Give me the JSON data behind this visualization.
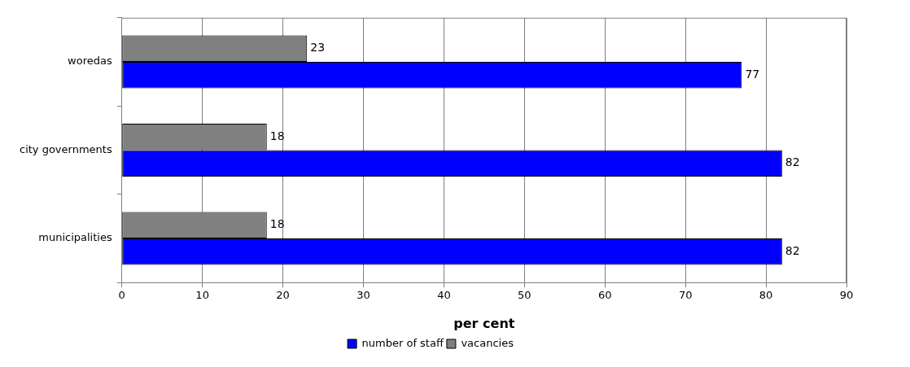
{
  "chart_data": {
    "type": "bar",
    "orientation": "horizontal",
    "categories": [
      "woredas",
      "city governments",
      "municipalities"
    ],
    "series": [
      {
        "name": "vacancies",
        "color": "#808080",
        "values": [
          23,
          18,
          18
        ]
      },
      {
        "name": "number of staff",
        "color": "#0000ff",
        "values": [
          77,
          82,
          82
        ]
      }
    ],
    "xlabel": "per cent",
    "xlim": [
      0,
      90
    ],
    "xticks": [
      0,
      10,
      20,
      30,
      40,
      50,
      60,
      70,
      80,
      90
    ],
    "grid": "x",
    "legend": "bottom",
    "data_labels": true
  }
}
